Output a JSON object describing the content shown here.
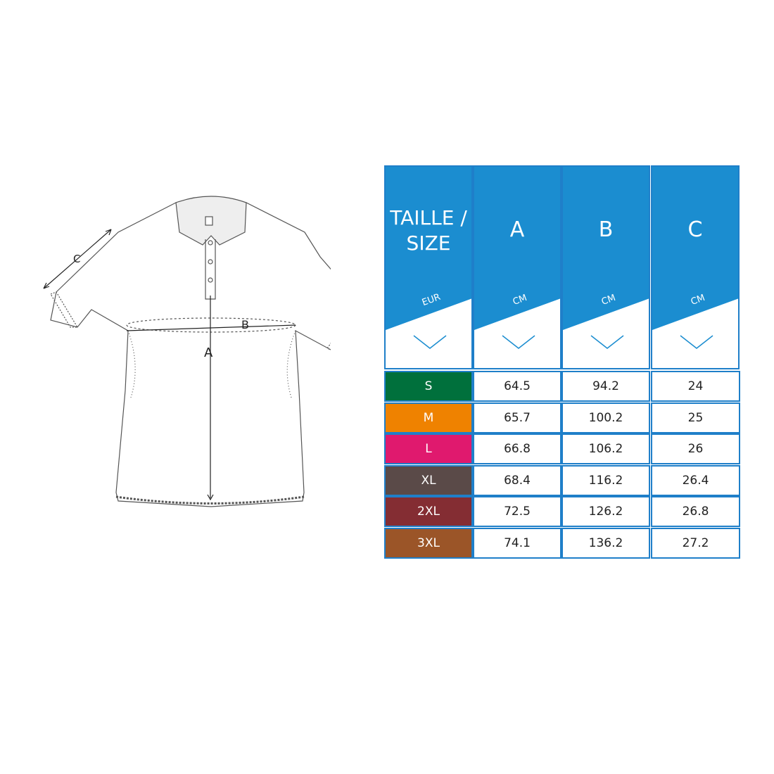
{
  "diagram": {
    "labels": {
      "a": "A",
      "b": "B",
      "c": "C"
    }
  },
  "table": {
    "header_color": "#1b8dd0",
    "columns": [
      {
        "title": "TAILLE / SIZE",
        "unit": "EUR"
      },
      {
        "title": "A",
        "unit": "CM"
      },
      {
        "title": "B",
        "unit": "CM"
      },
      {
        "title": "C",
        "unit": "CM"
      }
    ],
    "rows": [
      {
        "size": "S",
        "color": "#00703c",
        "a": "64.5",
        "b": "94.2",
        "c": "24"
      },
      {
        "size": "M",
        "color": "#ef8200",
        "a": "65.7",
        "b": "100.2",
        "c": "25"
      },
      {
        "size": "L",
        "color": "#e0196e",
        "a": "66.8",
        "b": "106.2",
        "c": "26"
      },
      {
        "size": "XL",
        "color": "#5a4a48",
        "a": "68.4",
        "b": "116.2",
        "c": "26.4"
      },
      {
        "size": "2XL",
        "color": "#842d33",
        "a": "72.5",
        "b": "126.2",
        "c": "26.8"
      },
      {
        "size": "3XL",
        "color": "#9b5528",
        "a": "74.1",
        "b": "136.2",
        "c": "27.2"
      }
    ]
  }
}
